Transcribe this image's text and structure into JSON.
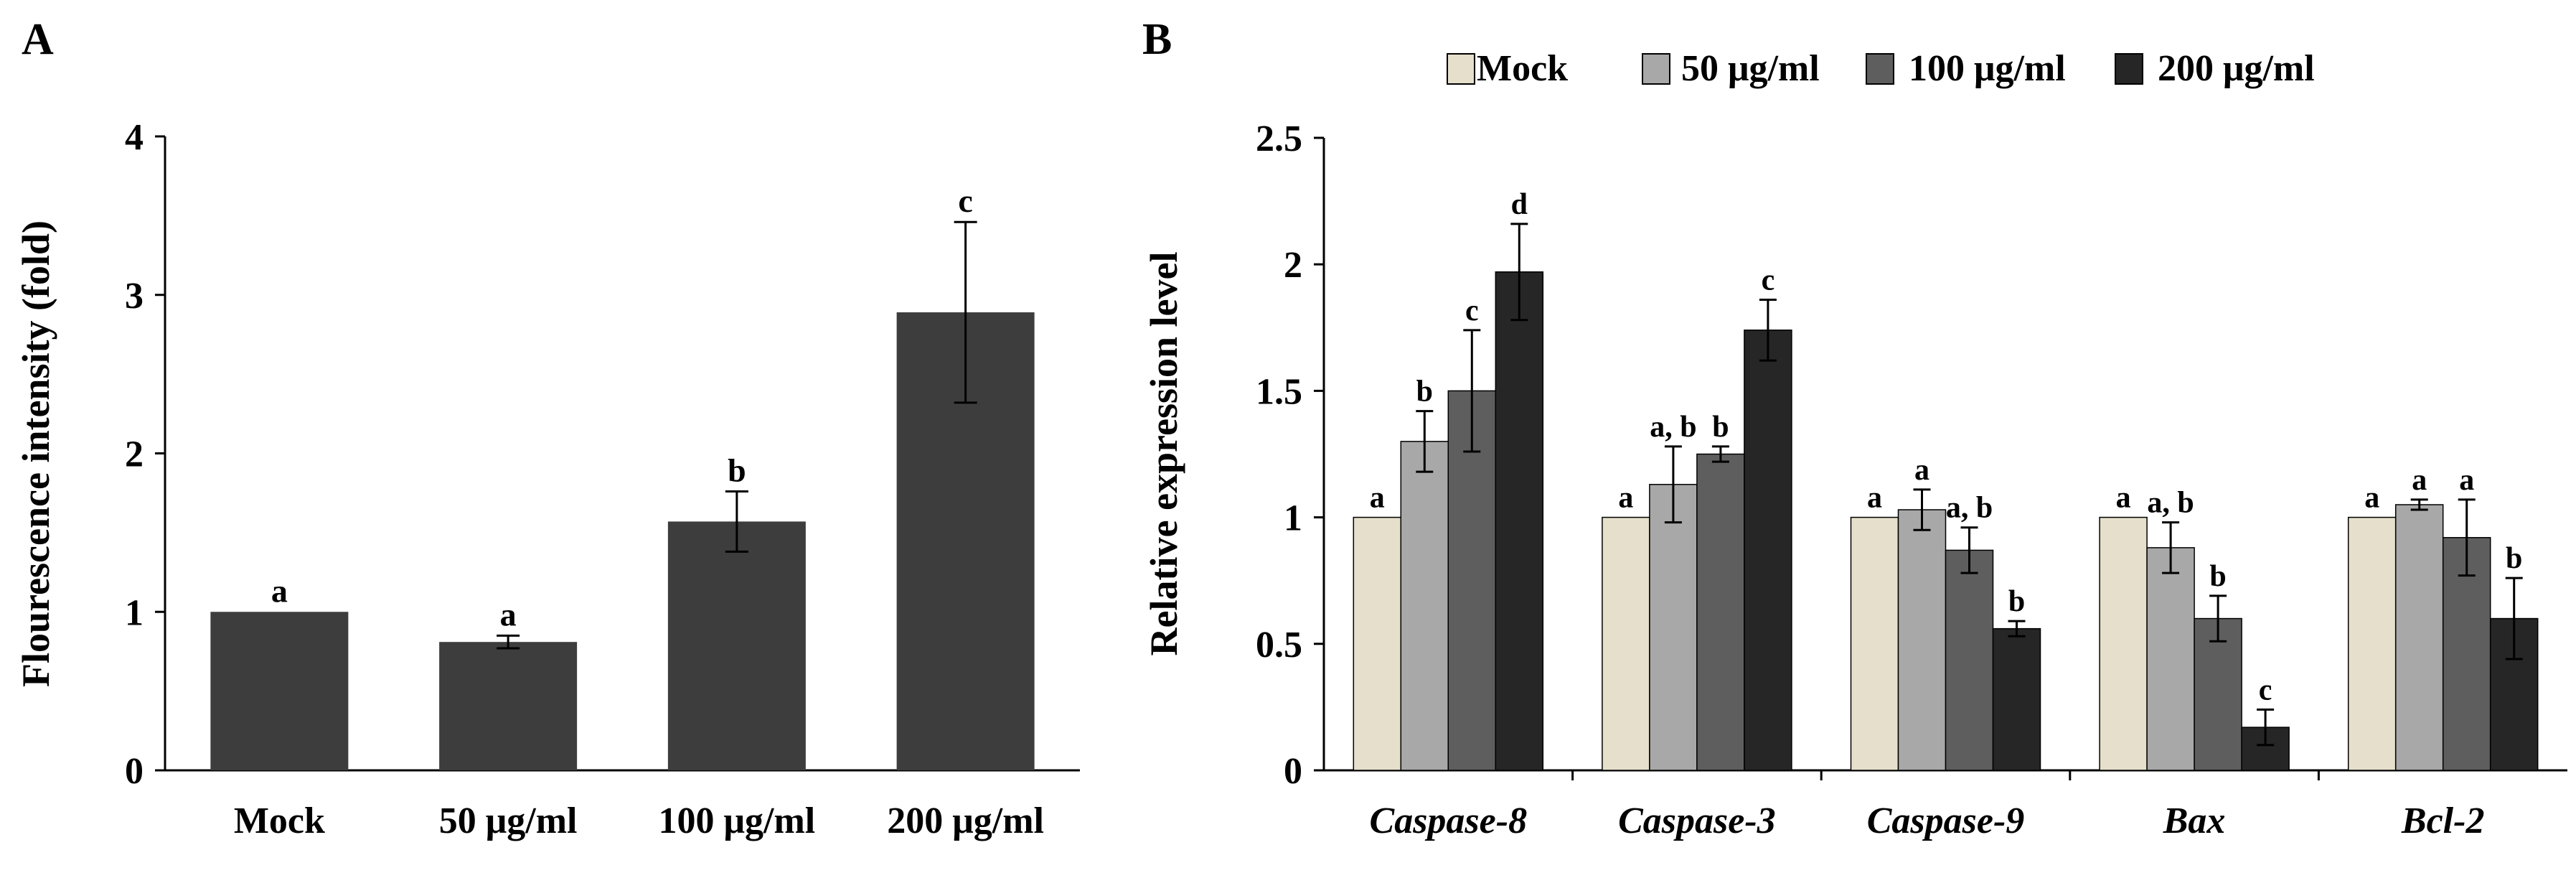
{
  "colors": {
    "panelA_bar": "#3d3d3d",
    "mock": "#e6dfcc",
    "c50": "#a8a8a8",
    "c100": "#5e5e5e",
    "c200": "#262626",
    "axis": "#000000"
  },
  "chart_data": [
    {
      "panel_label": "A",
      "type": "bar",
      "ylabel": "Flourescence  intensity  (fold)",
      "xlabel": "",
      "ylim": [
        0,
        4
      ],
      "yticks": [
        "0",
        "1",
        "2",
        "3",
        "4"
      ],
      "categories": [
        "Mock",
        "50 μg/ml",
        "100 μg/ml",
        "200 μg/ml"
      ],
      "values": [
        1.0,
        0.81,
        1.57,
        2.89
      ],
      "errors": [
        0.0,
        0.04,
        0.19,
        0.57
      ],
      "letters": [
        "a",
        "a",
        "b",
        "c"
      ],
      "grid": false
    },
    {
      "panel_label": "B",
      "type": "bar",
      "ylabel": "Relative expression level",
      "xlabel": "",
      "ylim": [
        0,
        2.5
      ],
      "yticks": [
        "0",
        "0.5",
        "1",
        "1.5",
        "2",
        "2.5"
      ],
      "legend_position": "top",
      "categories": [
        "Caspase-8",
        "Caspase-3",
        "Caspase-9",
        "Bax",
        "Bcl-2"
      ],
      "series": [
        {
          "name": "Mock",
          "color_key": "mock",
          "values": [
            1.0,
            1.0,
            1.0,
            1.0,
            1.0
          ],
          "errors": [
            0,
            0,
            0,
            0,
            0
          ],
          "letters": [
            "a",
            "a",
            "a",
            "a",
            "a"
          ]
        },
        {
          "name": "50 μg/ml",
          "color_key": "c50",
          "values": [
            1.3,
            1.13,
            1.03,
            0.88,
            1.05
          ],
          "errors": [
            0.12,
            0.15,
            0.08,
            0.1,
            0.02
          ],
          "letters": [
            "b",
            "a, b",
            "a",
            "a, b",
            "a"
          ]
        },
        {
          "name": "100 μg/ml",
          "color_key": "c100",
          "values": [
            1.5,
            1.25,
            0.87,
            0.6,
            0.92
          ],
          "errors": [
            0.24,
            0.03,
            0.09,
            0.09,
            0.15
          ],
          "letters": [
            "c",
            "b",
            "a, b",
            "b",
            "a"
          ]
        },
        {
          "name": "200 μg/ml",
          "color_key": "c200",
          "values": [
            1.97,
            1.74,
            0.56,
            0.17,
            0.6
          ],
          "errors": [
            0.19,
            0.12,
            0.03,
            0.07,
            0.16
          ],
          "letters": [
            "d",
            "c",
            "b",
            "c",
            "b"
          ]
        }
      ],
      "grid": false
    }
  ]
}
